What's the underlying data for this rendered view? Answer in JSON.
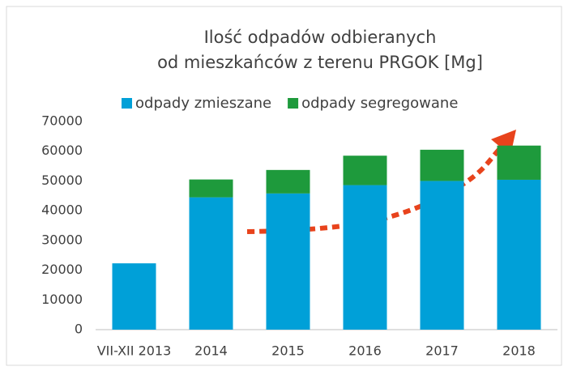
{
  "chart_data": {
    "type": "stacked_bar",
    "title": [
      "Ilość odpadów odbieranych",
      "od mieszkańców z terenu PRGOK [Mg]"
    ],
    "categories": [
      "VII-XII 2013",
      "2014",
      "2015",
      "2016",
      "2017",
      "2018"
    ],
    "series": [
      {
        "name": "odpady zmieszane",
        "color": "#00a0d8",
        "values": [
          22300,
          44500,
          45800,
          48600,
          50000,
          50400
        ]
      },
      {
        "name": "odpady segregowane",
        "color": "#1e9a3c",
        "values": [
          0,
          6000,
          7900,
          9900,
          10500,
          11500
        ]
      }
    ],
    "ylim": [
      0,
      70000
    ],
    "yticks": [
      0,
      10000,
      20000,
      30000,
      40000,
      50000,
      60000,
      70000
    ],
    "grid": false,
    "legend": "top"
  }
}
